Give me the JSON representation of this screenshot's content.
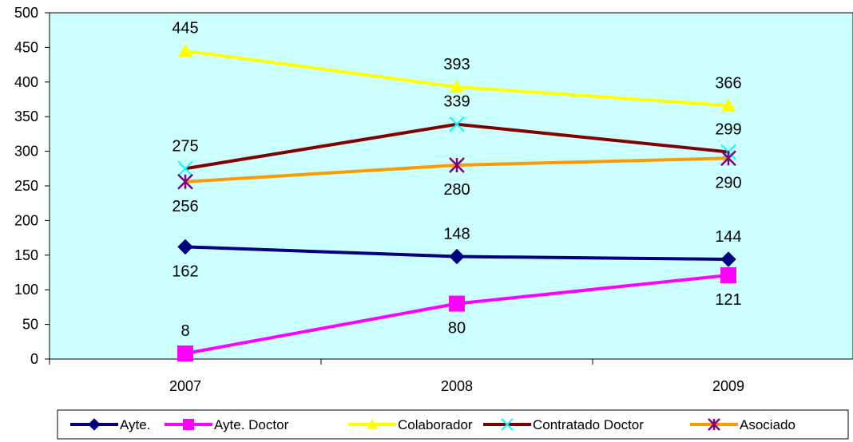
{
  "chart_data": {
    "type": "line",
    "categories": [
      "2007",
      "2008",
      "2009"
    ],
    "ylim": [
      0,
      500
    ],
    "yticks": [
      0,
      50,
      100,
      150,
      200,
      250,
      300,
      350,
      400,
      450,
      500
    ],
    "grid": false,
    "plot_background": "#ccffff",
    "legend_position": "bottom",
    "series": [
      {
        "name": "Ayte.",
        "values": [
          162,
          148,
          144
        ],
        "color": "#000080",
        "marker": "diamond",
        "labels": [
          "162",
          "148",
          "144"
        ],
        "label_pos": [
          "below",
          "above",
          "above"
        ]
      },
      {
        "name": "Ayte. Doctor",
        "values": [
          8,
          80,
          121
        ],
        "color": "#ff00ff",
        "marker": "square",
        "labels": [
          "8",
          "80",
          "121"
        ],
        "label_pos": [
          "above",
          "below",
          "below"
        ]
      },
      {
        "name": "Colaborador",
        "values": [
          445,
          393,
          366
        ],
        "color": "#ffff00",
        "marker": "triangle",
        "labels": [
          "445",
          "393",
          "366"
        ],
        "label_pos": [
          "above",
          "above",
          "above"
        ]
      },
      {
        "name": "Contratado Doctor",
        "values": [
          275,
          339,
          299
        ],
        "color": "#800000",
        "marker": "x",
        "marker_color": "#00ffff",
        "labels": [
          "275",
          "339",
          "299"
        ],
        "label_pos": [
          "above",
          "above",
          "above"
        ]
      },
      {
        "name": "Asociado",
        "values": [
          256,
          280,
          290
        ],
        "color": "#ff9900",
        "marker": "star",
        "marker_color": "#800080",
        "labels": [
          "256",
          "280",
          "290"
        ],
        "label_pos": [
          "below",
          "below",
          "below"
        ]
      }
    ]
  }
}
